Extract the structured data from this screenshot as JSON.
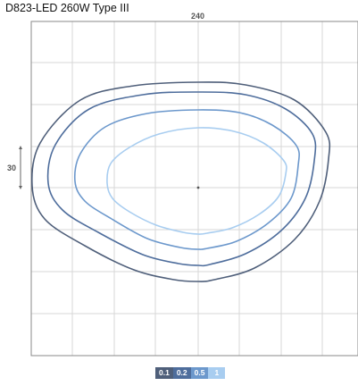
{
  "title": "D823-LED 260W Type III",
  "dimensions": {
    "top_label": "240",
    "left_label": "30"
  },
  "colors": {
    "gridline": "#d7d7d7",
    "frame": "#8a8a8a",
    "level_0_1": "#4f5f7a",
    "level_0_2": "#4e6d9c",
    "level_0_5": "#6c98cc",
    "level_1": "#a8cdf0"
  },
  "chart_data": {
    "type": "contour",
    "title": "D823-LED 260W Type III",
    "grid": true,
    "x_extent_label": "240",
    "y_mark_label": "30",
    "legend_placement": "bottom-center",
    "levels": [
      {
        "label": "0.1",
        "value": 0.1,
        "color": "#4f5f7a"
      },
      {
        "label": "0.2",
        "value": 0.2,
        "color": "#4e6d9c"
      },
      {
        "label": "0.5",
        "value": 0.5,
        "color": "#6c98cc"
      },
      {
        "label": "1",
        "value": 1,
        "color": "#a8cdf0"
      }
    ]
  }
}
